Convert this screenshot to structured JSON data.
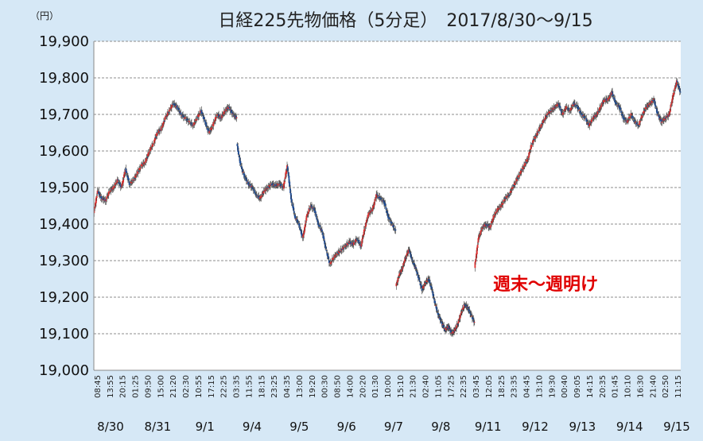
{
  "chart_data": {
    "type": "candlestick",
    "title": "日経225先物価格（5分足）　2017/8/30～9/15",
    "unit_label": "（円）",
    "ylim": [
      19000,
      19900
    ],
    "yticks": [
      19000,
      19100,
      19200,
      19300,
      19400,
      19500,
      19600,
      19700,
      19800,
      19900
    ],
    "ytick_labels": [
      "19,000",
      "19,100",
      "19,200",
      "19,300",
      "19,400",
      "19,500",
      "19,600",
      "19,700",
      "19,800",
      "19,900"
    ],
    "grid": true,
    "up_color": "#e03030",
    "down_color": "#1f4e9a",
    "time_tick_labels": [
      "08:45",
      "13:55",
      "20:15",
      "01:25",
      "09:50",
      "15:00",
      "21:20",
      "02:30",
      "10:55",
      "17:15",
      "22:25",
      "03:35",
      "11:55",
      "18:15",
      "23:25",
      "04:35",
      "13:00",
      "19:20",
      "00:30",
      "08:50",
      "14:00",
      "20:20",
      "01:30",
      "10:00",
      "15:10",
      "21:30",
      "02:40",
      "11:05",
      "17:25",
      "22:35",
      "03:45",
      "12:05",
      "18:25",
      "23:35",
      "04:45",
      "13:10",
      "19:30",
      "00:40",
      "09:05",
      "14:15",
      "20:35",
      "01:45",
      "10:10",
      "16:30",
      "21:40",
      "02:50",
      "11:15"
    ],
    "date_labels": [
      "8/30",
      "8/31",
      "9/1",
      "9/4",
      "9/5",
      "9/6",
      "9/7",
      "9/8",
      "9/11",
      "9/12",
      "9/13",
      "9/14",
      "9/15"
    ],
    "segments": [
      {
        "points": [
          19430,
          19490,
          19470,
          19465,
          19490,
          19500,
          19520,
          19500,
          19550,
          19510,
          19520,
          19540,
          19560,
          19570,
          19600,
          19620,
          19650,
          19660,
          19690,
          19710,
          19730,
          19720,
          19700,
          19690,
          19680,
          19670,
          19690,
          19710,
          19680,
          19650,
          19670,
          19700,
          19690,
          19710,
          19720,
          19700,
          19690
        ]
      },
      {
        "points": [
          19620,
          19560,
          19530,
          19510,
          19500,
          19480,
          19470,
          19490,
          19500,
          19510,
          19505,
          19510,
          19500,
          19560,
          19470,
          19420,
          19400,
          19360,
          19420,
          19450,
          19440,
          19400,
          19380,
          19330,
          19290,
          19310,
          19320,
          19330,
          19340,
          19350,
          19345,
          19360,
          19340,
          19390,
          19430,
          19440,
          19480,
          19470,
          19460,
          19420,
          19400,
          19380
        ]
      },
      {
        "points": [
          19230,
          19260,
          19280,
          19310,
          19330,
          19300,
          19280,
          19250,
          19220,
          19240,
          19250,
          19220,
          19180,
          19150,
          19130,
          19110,
          19120,
          19100,
          19110,
          19130,
          19160,
          19180,
          19170,
          19150,
          19130
        ]
      },
      {
        "points": [
          19280,
          19360,
          19390,
          19400,
          19390,
          19420,
          19440,
          19450,
          19470,
          19480,
          19500,
          19520,
          19540,
          19560,
          19580,
          19620,
          19640,
          19660,
          19680,
          19700,
          19710,
          19720,
          19730,
          19700,
          19720,
          19710,
          19730,
          19720,
          19700,
          19690,
          19670,
          19690,
          19700,
          19720,
          19740,
          19740,
          19760,
          19730,
          19720,
          19690,
          19680,
          19700,
          19680,
          19670,
          19700,
          19720,
          19730,
          19740,
          19700,
          19680,
          19690,
          19700,
          19750,
          19790,
          19760
        ]
      }
    ],
    "annotations": [
      {
        "text": "週末～週明け"
      }
    ]
  }
}
